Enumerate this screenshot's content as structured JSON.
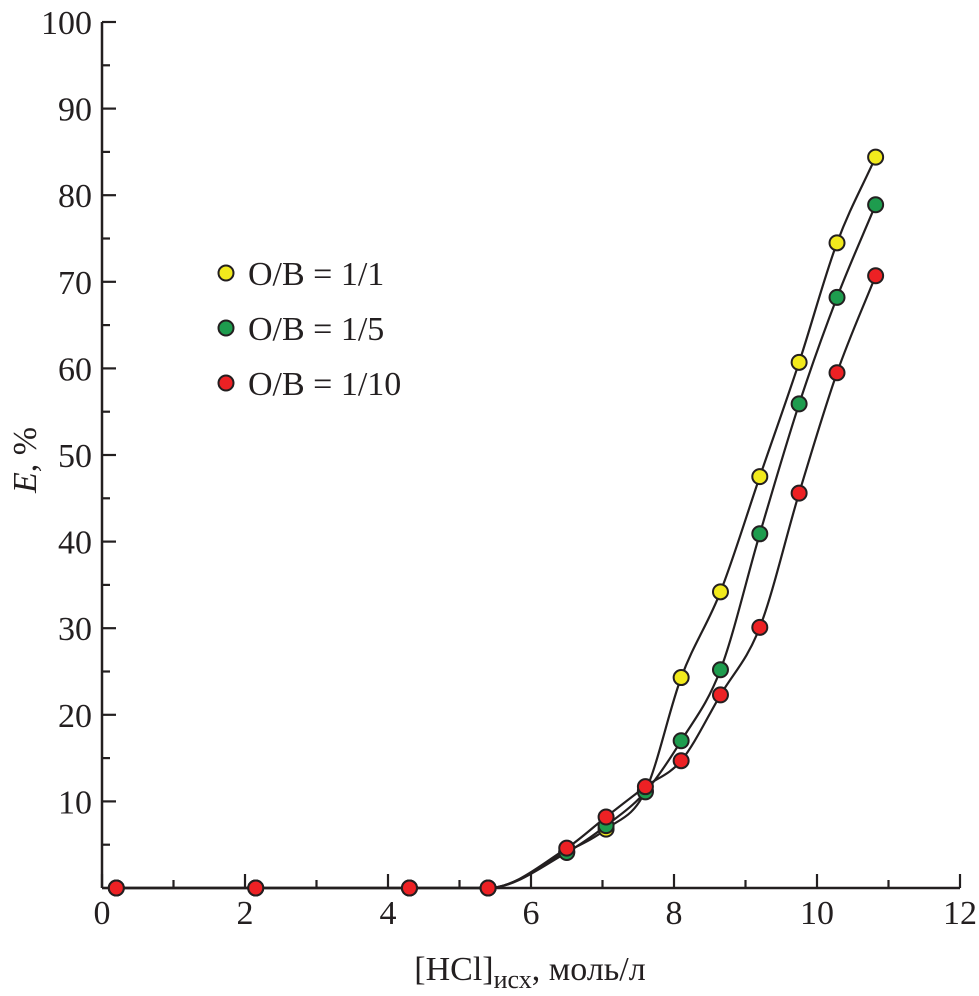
{
  "chart_data": {
    "type": "scatter",
    "xlabel": "[HCl]",
    "xlabel_subscript": "исх",
    "xlabel_suffix": ", моль/л",
    "ylabel": "E",
    "ylabel_suffix": ", %",
    "xlim": [
      0,
      12
    ],
    "ylim": [
      0,
      100
    ],
    "x_ticks": [
      0,
      2,
      4,
      6,
      8,
      10,
      12
    ],
    "y_ticks": [
      10,
      20,
      30,
      40,
      50,
      60,
      70,
      80,
      90,
      100
    ],
    "grid": false,
    "legend_position": "upper-left",
    "series": [
      {
        "name": "O/B = 1/1",
        "color": "#f2ea1d",
        "x": [
          0.2,
          2.15,
          4.3,
          5.4,
          6.5,
          7.05,
          7.6,
          8.1,
          8.65,
          9.2,
          9.75,
          10.28,
          10.82
        ],
        "y": [
          0,
          0,
          0,
          0,
          4.2,
          6.8,
          11.2,
          24.3,
          34.2,
          47.5,
          60.7,
          74.5,
          84.4
        ]
      },
      {
        "name": "O/B = 1/5",
        "color": "#1e9c4e",
        "x": [
          0.2,
          2.15,
          4.3,
          5.4,
          6.5,
          7.05,
          7.6,
          8.1,
          8.65,
          9.2,
          9.75,
          10.28,
          10.82
        ],
        "y": [
          0,
          0,
          0,
          0,
          4.1,
          7.2,
          11.1,
          17.0,
          25.2,
          40.9,
          55.9,
          68.2,
          78.9
        ]
      },
      {
        "name": "O/B = 1/10",
        "color": "#ed2124",
        "x": [
          0.2,
          2.15,
          4.3,
          5.4,
          6.5,
          7.05,
          7.6,
          8.1,
          8.65,
          9.2,
          9.75,
          10.28,
          10.82
        ],
        "y": [
          0,
          0,
          0,
          0,
          4.6,
          8.2,
          11.7,
          14.7,
          22.3,
          30.1,
          45.6,
          59.5,
          70.7
        ]
      }
    ]
  }
}
